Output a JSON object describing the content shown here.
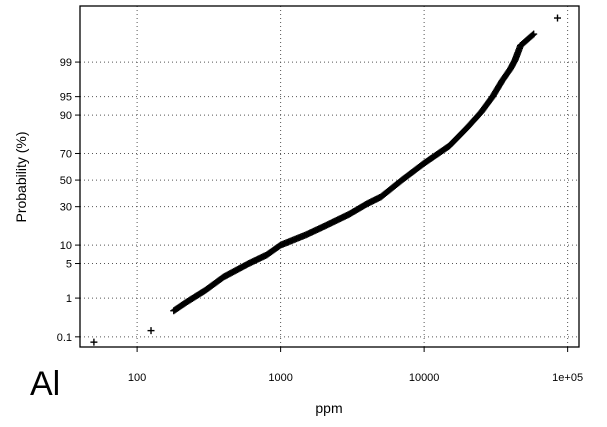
{
  "chart_data": {
    "type": "scatter",
    "title": "",
    "panel_label": "Al",
    "xlabel": "ppm",
    "ylabel": "Probability (%)",
    "x_scale": "log",
    "y_scale": "probability",
    "xlim": [
      40,
      120000
    ],
    "ylim": [
      0.05,
      99.97
    ],
    "x_ticks": [
      100,
      1000,
      10000,
      100000
    ],
    "x_tick_labels": [
      "100",
      "1000",
      "10000",
      "1e+05"
    ],
    "y_ticks": [
      0.1,
      1,
      5,
      10,
      30,
      50,
      70,
      90,
      95,
      99
    ],
    "y_tick_labels": [
      "0.1",
      "1",
      "5",
      "10",
      "30",
      "50",
      "70",
      "90",
      "95",
      "99"
    ],
    "grid": true,
    "grid_style": "dotted",
    "marker": "+",
    "colors": {
      "marker": "#000000",
      "axis": "#000000",
      "grid": "#555555"
    },
    "anchors": [
      [
        50,
        0.07
      ],
      [
        125,
        0.15
      ],
      [
        180,
        0.5
      ],
      [
        220,
        0.8
      ],
      [
        300,
        1.5
      ],
      [
        400,
        2.8
      ],
      [
        600,
        5
      ],
      [
        800,
        7
      ],
      [
        1000,
        10
      ],
      [
        1500,
        14
      ],
      [
        2000,
        18
      ],
      [
        3000,
        25
      ],
      [
        4000,
        32
      ],
      [
        5000,
        37
      ],
      [
        7000,
        50
      ],
      [
        10000,
        63
      ],
      [
        15000,
        75
      ],
      [
        20000,
        85
      ],
      [
        25000,
        91
      ],
      [
        30000,
        95
      ],
      [
        35000,
        97.5
      ],
      [
        40000,
        98.6
      ],
      [
        43000,
        99.1
      ],
      [
        45000,
        99.4
      ],
      [
        47000,
        99.6
      ],
      [
        58000,
        99.8
      ],
      [
        85000,
        99.93
      ]
    ]
  }
}
